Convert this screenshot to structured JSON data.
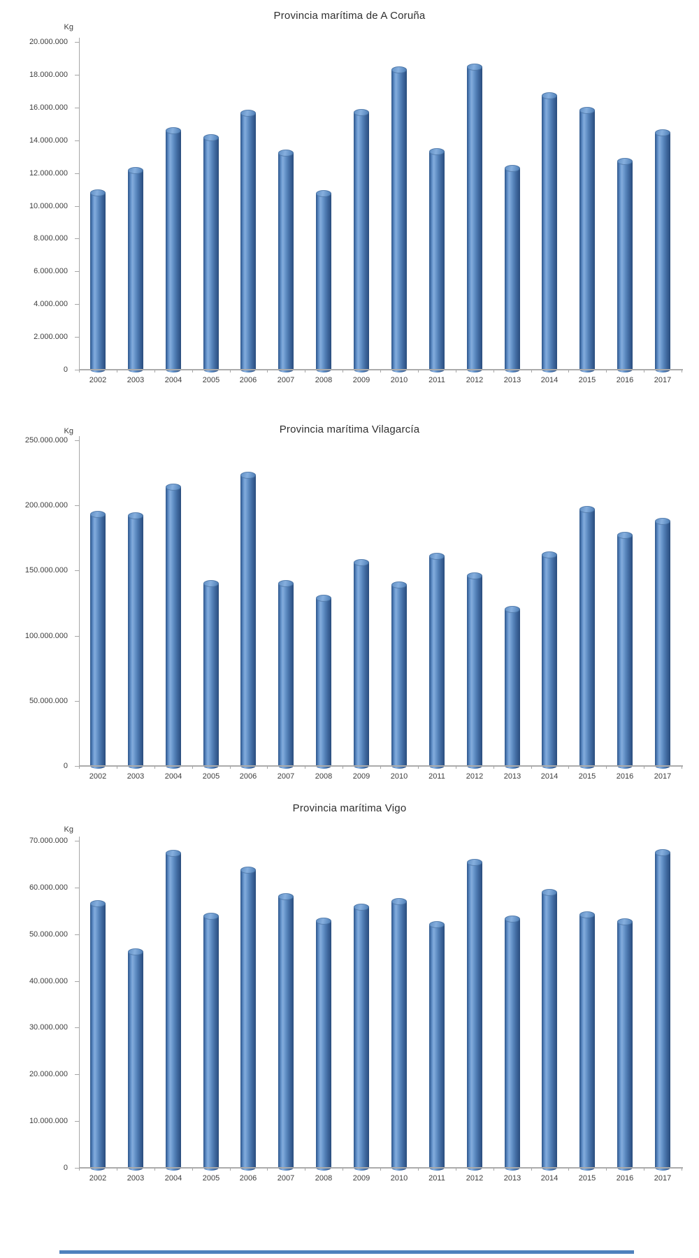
{
  "page": {
    "background": "#ffffff"
  },
  "colors": {
    "bar_main": "#4f81bd",
    "bar_highlight": "#84acdc",
    "bar_shadow": "#2a4d7c",
    "axis": "#a6a6a6",
    "text": "#3d3d3d",
    "bottom_line": "#4f81bd"
  },
  "bottom_divider": {
    "present": true
  },
  "chart_data": [
    {
      "type": "bar",
      "title": "Provincia marítima de A Coruña",
      "unit": "Kg",
      "xlabel": "",
      "ylabel": "Kg",
      "grid": false,
      "legend": "none",
      "ylim": [
        0,
        20000000
      ],
      "ytick_step": 2000000,
      "ytick_labels": [
        "20.000.000",
        "18.000.000",
        "16.000.000",
        "14.000.000",
        "12.000.000",
        "10.000.000",
        "8.000.000",
        "6.000.000",
        "4.000.000",
        "2.000.000",
        "0"
      ],
      "categories": [
        "2002",
        "2003",
        "2004",
        "2005",
        "2006",
        "2007",
        "2008",
        "2009",
        "2010",
        "2011",
        "2012",
        "2013",
        "2014",
        "2015",
        "2016",
        "2017"
      ],
      "values": [
        10800000,
        12150000,
        14600000,
        14150000,
        15650000,
        13200000,
        10750000,
        15700000,
        18300000,
        13300000,
        18450000,
        12300000,
        16700000,
        15800000,
        12700000,
        14450000
      ]
    },
    {
      "type": "bar",
      "title": "Provincia marítima Vilagarcía",
      "unit": "Kg",
      "xlabel": "",
      "ylabel": "Kg",
      "grid": false,
      "legend": "none",
      "ylim": [
        0,
        250000000
      ],
      "ytick_step": 50000000,
      "ytick_labels": [
        "250.000.000",
        "200.000.000",
        "150.000.000",
        "100.000.000",
        "50.000.000",
        "0"
      ],
      "categories": [
        "2002",
        "2003",
        "2004",
        "2005",
        "2006",
        "2007",
        "2008",
        "2009",
        "2010",
        "2011",
        "2012",
        "2013",
        "2014",
        "2015",
        "2016",
        "2017"
      ],
      "values": [
        193000000,
        192000000,
        214000000,
        140000000,
        223000000,
        140000000,
        129000000,
        156000000,
        139000000,
        161000000,
        146000000,
        120000000,
        162000000,
        197000000,
        177000000,
        188000000
      ]
    },
    {
      "type": "bar",
      "title": "Provincia marítima Vigo",
      "unit": "Kg",
      "xlabel": "",
      "ylabel": "Kg",
      "grid": false,
      "legend": "none",
      "ylim": [
        0,
        70000000
      ],
      "ytick_step": 10000000,
      "ytick_labels": [
        "70.000.000",
        "60.000.000",
        "50.000.000",
        "40.000.000",
        "30.000.000",
        "20.000.000",
        "10.000.000",
        "0"
      ],
      "categories": [
        "2002",
        "2003",
        "2004",
        "2005",
        "2006",
        "2007",
        "2008",
        "2009",
        "2010",
        "2011",
        "2012",
        "2013",
        "2014",
        "2015",
        "2016",
        "2017"
      ],
      "values": [
        56500000,
        46200000,
        67300000,
        53800000,
        63700000,
        58000000,
        52800000,
        55800000,
        57000000,
        52000000,
        65300000,
        53200000,
        59000000,
        54100000,
        52600000,
        67500000
      ]
    }
  ]
}
